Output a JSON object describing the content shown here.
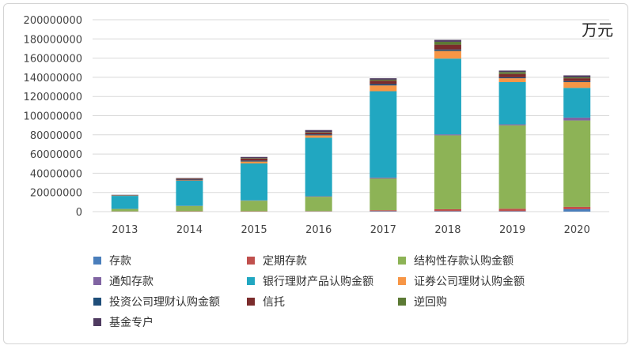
{
  "unit": "万元",
  "chart_data": {
    "type": "bar",
    "stacked": true,
    "categories": [
      "2013",
      "2014",
      "2015",
      "2016",
      "2017",
      "2018",
      "2019",
      "2020"
    ],
    "ylim": [
      0,
      200000000
    ],
    "yticks": [
      "0",
      "20000000",
      "40000000",
      "60000000",
      "80000000",
      "100000000",
      "120000000",
      "140000000",
      "160000000",
      "180000000",
      "200000000"
    ],
    "grid": true,
    "legend_position": "bottom",
    "series": [
      {
        "name": "存款",
        "color": "#4a7ebb",
        "values": [
          100000,
          100000,
          100000,
          200000,
          500000,
          500000,
          500000,
          2500000
        ]
      },
      {
        "name": "定期存款",
        "color": "#c0504d",
        "values": [
          200000,
          300000,
          300000,
          300000,
          1000000,
          2000000,
          2500000,
          2500000
        ]
      },
      {
        "name": "结构性存款认购金额",
        "color": "#8db356",
        "values": [
          2500000,
          5500000,
          11000000,
          15000000,
          33000000,
          77000000,
          87000000,
          90000000
        ]
      },
      {
        "name": "通知存款",
        "color": "#8064a2",
        "values": [
          100000,
          200000,
          300000,
          500000,
          1000000,
          1000000,
          1000000,
          3000000
        ]
      },
      {
        "name": "银行理财产品认购金额",
        "color": "#21a7c1",
        "values": [
          13500000,
          26000000,
          38500000,
          61000000,
          90000000,
          79000000,
          44000000,
          31000000
        ]
      },
      {
        "name": "证券公司理财认购金额",
        "color": "#f79646",
        "values": [
          300000,
          500000,
          2000000,
          2500000,
          6000000,
          8000000,
          4000000,
          6000000
        ]
      },
      {
        "name": "投资公司理财认购金额",
        "color": "#1f4e79",
        "values": [
          200000,
          800000,
          1000000,
          1000000,
          1500000,
          1500000,
          1000000,
          1000000
        ]
      },
      {
        "name": "信托",
        "color": "#7b2c2c",
        "values": [
          300000,
          1000000,
          2000000,
          2000000,
          3500000,
          5000000,
          3500000,
          3000000
        ]
      },
      {
        "name": "逆回购",
        "color": "#5c7a35",
        "values": [
          100000,
          200000,
          500000,
          500000,
          1000000,
          3000000,
          2000000,
          1000000
        ]
      },
      {
        "name": "基金专户",
        "color": "#4f3b60",
        "values": [
          200000,
          400000,
          1300000,
          2000000,
          1500000,
          2000000,
          1500000,
          2000000
        ]
      }
    ]
  }
}
